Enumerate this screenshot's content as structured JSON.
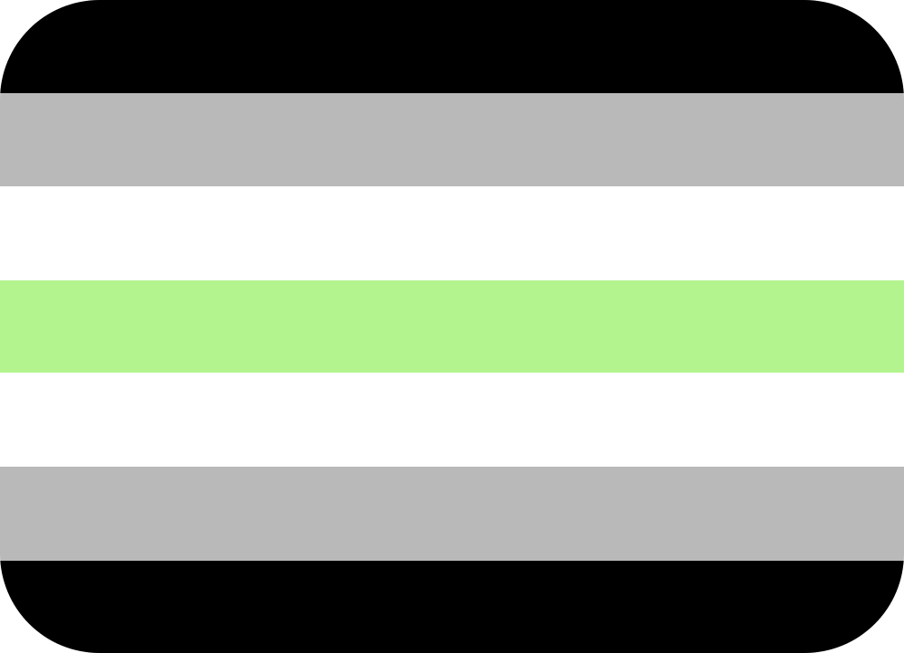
{
  "flag": {
    "icon": "agender-pride-flag-icon",
    "stripes": [
      {
        "name": "black",
        "color": "#000000"
      },
      {
        "name": "gray",
        "color": "#b9b9b9"
      },
      {
        "name": "white",
        "color": "#ffffff"
      },
      {
        "name": "light-green",
        "color": "#b3f48f"
      },
      {
        "name": "white",
        "color": "#ffffff"
      },
      {
        "name": "gray",
        "color": "#b9b9b9"
      },
      {
        "name": "black",
        "color": "#000000"
      }
    ]
  }
}
